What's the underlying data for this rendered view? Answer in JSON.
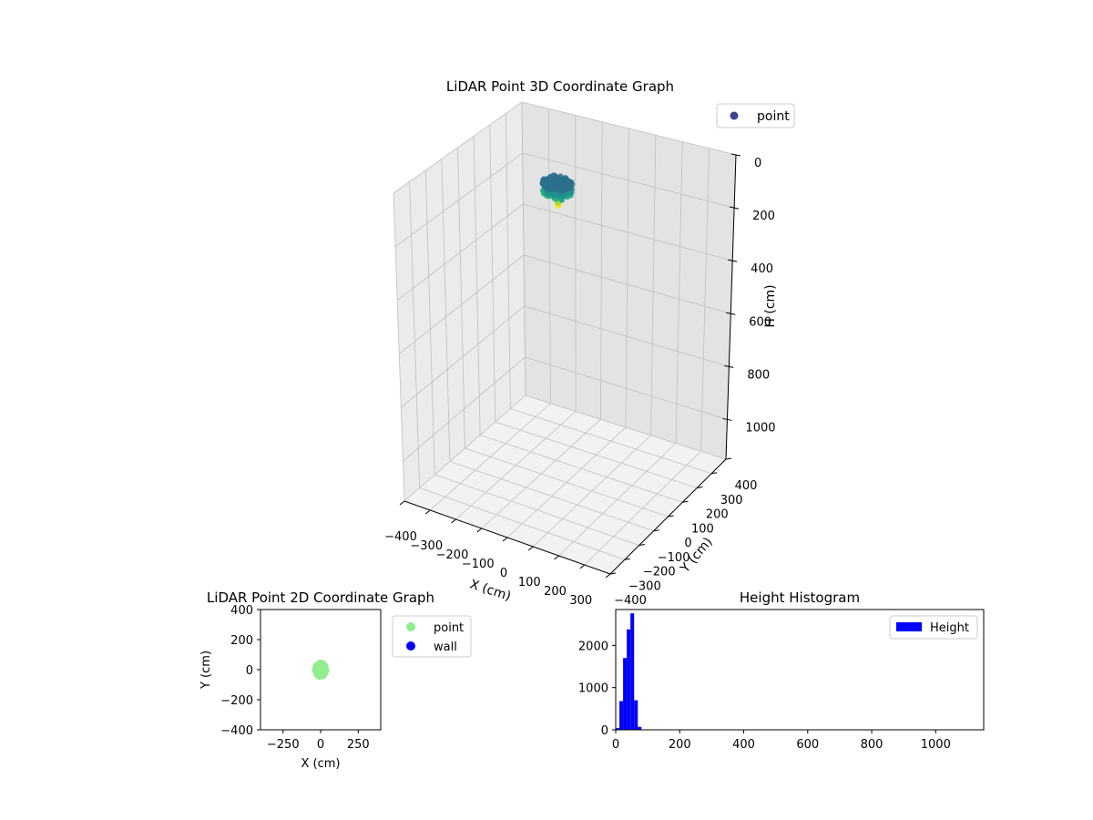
{
  "chart_data": [
    {
      "type": "scatter",
      "title": "LiDAR Point 3D Coordinate Graph",
      "xlabel": "X (cm)",
      "ylabel": "Y (cm)",
      "zlabel": "H (cm)",
      "xticks": [
        "−400",
        "−300",
        "−200",
        "−100",
        "0",
        "100",
        "200",
        "300"
      ],
      "yticks": [
        "−400",
        "−300",
        "−200",
        "−100",
        "0",
        "100",
        "200",
        "300",
        "400"
      ],
      "zticks": [
        "0",
        "200",
        "400",
        "600",
        "800",
        "1000"
      ],
      "xlim": [
        -400,
        400
      ],
      "ylim": [
        -400,
        400
      ],
      "zlim": [
        0,
        1150
      ],
      "z_inverted": true,
      "grid": true,
      "legend": {
        "placement": "top-right",
        "entries": [
          {
            "label": "point",
            "color": "#3b4391"
          }
        ]
      },
      "cluster": {
        "x_range": [
          -50,
          50
        ],
        "y_range": [
          -50,
          50
        ],
        "h_range": [
          20,
          60
        ],
        "colormap": "viridis"
      }
    },
    {
      "type": "scatter",
      "title": "LiDAR Point 2D Coordinate Graph",
      "xlabel": "X (cm)",
      "ylabel": "Y (cm)",
      "xlim": [
        -400,
        400
      ],
      "ylim": [
        -400,
        400
      ],
      "xticks": [
        "−250",
        "0",
        "250"
      ],
      "yticks": [
        "400",
        "200",
        "0",
        "−200",
        "−400"
      ],
      "legend": {
        "placement": "outside-right",
        "entries": [
          {
            "label": "point",
            "color": "#90ee90"
          },
          {
            "label": "wall",
            "color": "#0000ff"
          }
        ]
      },
      "cluster": {
        "x_range": [
          -40,
          40
        ],
        "y_range": [
          -50,
          50
        ]
      }
    },
    {
      "type": "bar",
      "title": "Height Histogram",
      "xlim": [
        0,
        1150
      ],
      "ylim": [
        0,
        2850
      ],
      "xticks": [
        "0",
        "200",
        "400",
        "600",
        "800",
        "1000"
      ],
      "yticks": [
        "0",
        "1000",
        "2000"
      ],
      "color": "#0000ff",
      "legend": {
        "placement": "top-right",
        "entries": [
          {
            "label": "Height",
            "color": "#0000ff"
          }
        ]
      },
      "bin_width": 11.5,
      "bins": [
        {
          "x": 0,
          "value": 40
        },
        {
          "x": 11.5,
          "value": 680
        },
        {
          "x": 23,
          "value": 1700
        },
        {
          "x": 34.5,
          "value": 2380
        },
        {
          "x": 46,
          "value": 2760
        },
        {
          "x": 57.5,
          "value": 700
        },
        {
          "x": 69,
          "value": 70
        }
      ]
    }
  ]
}
